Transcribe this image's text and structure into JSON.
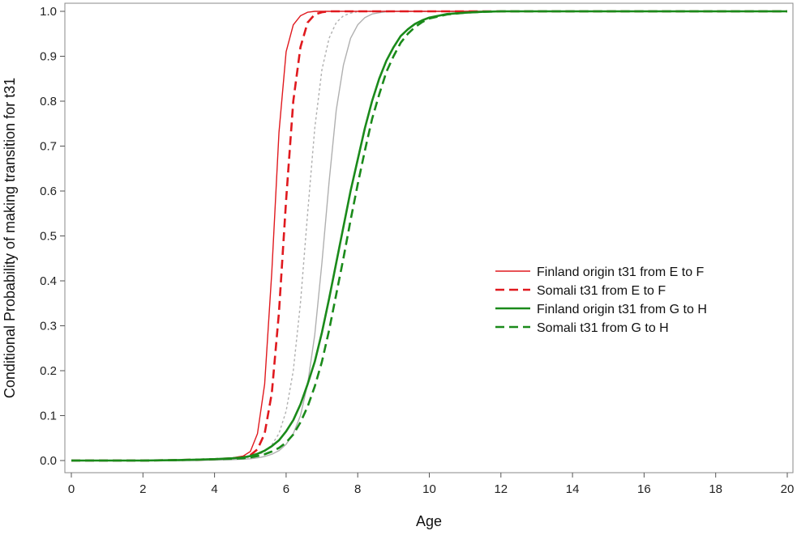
{
  "chart_data": {
    "type": "line",
    "title": "",
    "xlabel": "Age",
    "ylabel": "Conditional Probability of making transition for t31",
    "xlim": [
      0,
      20
    ],
    "ylim": [
      0.0,
      1.0
    ],
    "x_ticks": [
      "0",
      "2",
      "4",
      "6",
      "8",
      "10",
      "12",
      "14",
      "16",
      "18",
      "20"
    ],
    "y_ticks": [
      "0.0",
      "0.1",
      "0.2",
      "0.3",
      "0.4",
      "0.5",
      "0.6",
      "0.7",
      "0.8",
      "0.9",
      "1.0"
    ],
    "grid": false,
    "legend_position": "right-center",
    "x": [
      0,
      1,
      2,
      3,
      3.5,
      4,
      4.5,
      4.8,
      5,
      5.2,
      5.4,
      5.6,
      5.8,
      6,
      6.2,
      6.4,
      6.6,
      6.8,
      7,
      7.2,
      7.4,
      7.6,
      7.8,
      8,
      8.2,
      8.4,
      8.6,
      8.8,
      9,
      9.2,
      9.4,
      9.6,
      9.8,
      10,
      10.5,
      11,
      11.5,
      12,
      13,
      14,
      16,
      18,
      20
    ],
    "series": [
      {
        "name": "Finland origin t31 from E to F",
        "color": "#e0191e",
        "dash": "solid",
        "width": "thin",
        "in_legend": true,
        "values": [
          0,
          0,
          0,
          0.001,
          0.002,
          0.003,
          0.006,
          0.01,
          0.02,
          0.06,
          0.17,
          0.42,
          0.73,
          0.91,
          0.97,
          0.99,
          0.998,
          1.0,
          1.0,
          1.0,
          1.0,
          1.0,
          1.0,
          1.0,
          1.0,
          1.0,
          1.0,
          1.0,
          1.0,
          1.0,
          1.0,
          1.0,
          1.0,
          1.0,
          1.0,
          1.0,
          1.0,
          1.0,
          1.0,
          1.0,
          1.0,
          1.0,
          1.0
        ]
      },
      {
        "name": "Somali t31 from E to F",
        "color": "#e0191e",
        "dash": "dashed",
        "width": "thick",
        "in_legend": true,
        "values": [
          0,
          0,
          0,
          0.001,
          0.002,
          0.003,
          0.005,
          0.008,
          0.012,
          0.025,
          0.06,
          0.15,
          0.33,
          0.58,
          0.8,
          0.92,
          0.975,
          0.993,
          0.998,
          1.0,
          1.0,
          1.0,
          1.0,
          1.0,
          1.0,
          1.0,
          1.0,
          1.0,
          1.0,
          1.0,
          1.0,
          1.0,
          1.0,
          1.0,
          1.0,
          1.0,
          1.0,
          1.0,
          1.0,
          1.0,
          1.0,
          1.0,
          1.0
        ]
      },
      {
        "name": "Finland origin t31 from G to H",
        "color": "#1a8a1a",
        "dash": "solid",
        "width": "thick",
        "in_legend": true,
        "values": [
          0,
          0,
          0,
          0.001,
          0.002,
          0.003,
          0.005,
          0.007,
          0.01,
          0.015,
          0.022,
          0.032,
          0.045,
          0.065,
          0.09,
          0.125,
          0.17,
          0.22,
          0.285,
          0.36,
          0.44,
          0.52,
          0.6,
          0.67,
          0.74,
          0.8,
          0.85,
          0.89,
          0.92,
          0.945,
          0.96,
          0.972,
          0.98,
          0.986,
          0.994,
          0.997,
          0.999,
          1.0,
          1.0,
          1.0,
          1.0,
          1.0,
          1.0
        ]
      },
      {
        "name": "Somali t31 from G to H",
        "color": "#1a8a1a",
        "dash": "dashed",
        "width": "thick",
        "in_legend": true,
        "values": [
          0,
          0,
          0,
          0.001,
          0.002,
          0.003,
          0.004,
          0.005,
          0.007,
          0.01,
          0.014,
          0.02,
          0.028,
          0.04,
          0.058,
          0.085,
          0.12,
          0.165,
          0.22,
          0.29,
          0.37,
          0.45,
          0.535,
          0.615,
          0.69,
          0.76,
          0.815,
          0.865,
          0.9,
          0.93,
          0.95,
          0.965,
          0.976,
          0.984,
          0.993,
          0.997,
          0.999,
          1.0,
          1.0,
          1.0,
          1.0,
          1.0,
          1.0
        ]
      },
      {
        "name": "",
        "color": "#b0b0b0",
        "dash": "dotted",
        "width": "thin",
        "in_legend": false,
        "values": [
          0,
          0,
          0,
          0,
          0.001,
          0.002,
          0.003,
          0.005,
          0.008,
          0.012,
          0.02,
          0.035,
          0.06,
          0.11,
          0.2,
          0.35,
          0.55,
          0.74,
          0.87,
          0.94,
          0.975,
          0.99,
          0.996,
          0.999,
          1.0,
          1.0,
          1.0,
          1.0,
          1.0,
          1.0,
          1.0,
          1.0,
          1.0,
          1.0,
          1.0,
          1.0,
          1.0,
          1.0,
          1.0,
          1.0,
          1.0,
          1.0,
          1.0
        ]
      },
      {
        "name": "",
        "color": "#b0b0b0",
        "dash": "solid",
        "width": "thin",
        "in_legend": false,
        "values": [
          0,
          0,
          0,
          0,
          0,
          0.001,
          0.002,
          0.003,
          0.004,
          0.006,
          0.009,
          0.014,
          0.022,
          0.036,
          0.06,
          0.1,
          0.17,
          0.28,
          0.44,
          0.62,
          0.78,
          0.88,
          0.94,
          0.97,
          0.986,
          0.994,
          0.997,
          0.999,
          1.0,
          1.0,
          1.0,
          1.0,
          1.0,
          1.0,
          1.0,
          1.0,
          1.0,
          1.0,
          1.0,
          1.0,
          1.0,
          1.0,
          1.0
        ]
      }
    ]
  }
}
